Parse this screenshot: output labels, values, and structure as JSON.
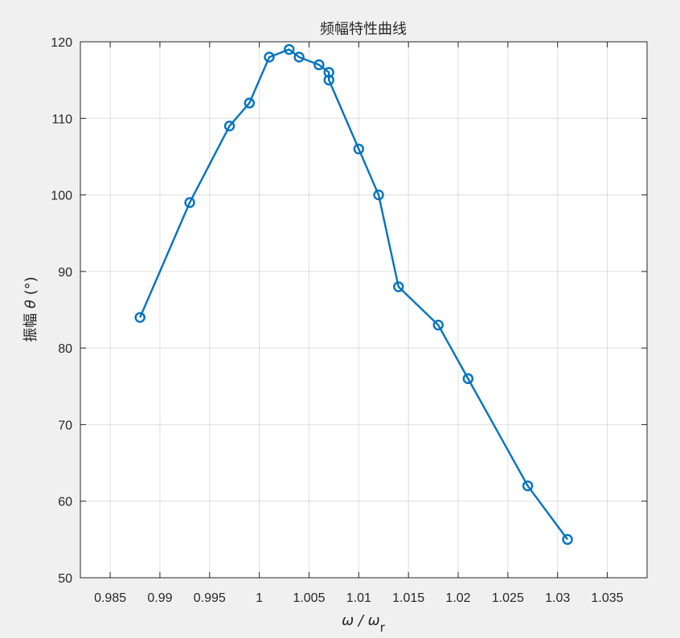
{
  "chart_data": {
    "type": "line",
    "title": "频幅特性曲线",
    "xlabel": "ω / ω_r",
    "ylabel": "振幅 θ (°)",
    "xlim": [
      0.982,
      1.039
    ],
    "ylim": [
      50,
      120
    ],
    "xticks": [
      0.985,
      0.99,
      0.995,
      1,
      1.005,
      1.01,
      1.015,
      1.02,
      1.025,
      1.03,
      1.035
    ],
    "xtick_labels": [
      "0.985",
      "0.99",
      "0.995",
      "1",
      "1.005",
      "1.01",
      "1.015",
      "1.02",
      "1.025",
      "1.03",
      "1.035"
    ],
    "yticks": [
      50,
      60,
      70,
      80,
      90,
      100,
      110,
      120
    ],
    "ytick_labels": [
      "50",
      "60",
      "70",
      "80",
      "90",
      "100",
      "110",
      "120"
    ],
    "grid": true,
    "marker": "circle",
    "color": "#0072bd",
    "series": [
      {
        "x": [
          0.988,
          0.993,
          0.997,
          0.999,
          1.001,
          1.003,
          1.004,
          1.006,
          1.007,
          1.007,
          1.01,
          1.012,
          1.014,
          1.018,
          1.021,
          1.027,
          1.031
        ],
        "y": [
          84,
          99,
          109,
          112,
          118,
          119,
          118,
          117,
          116,
          115,
          106,
          100,
          88,
          83,
          76,
          62,
          55
        ]
      }
    ]
  }
}
